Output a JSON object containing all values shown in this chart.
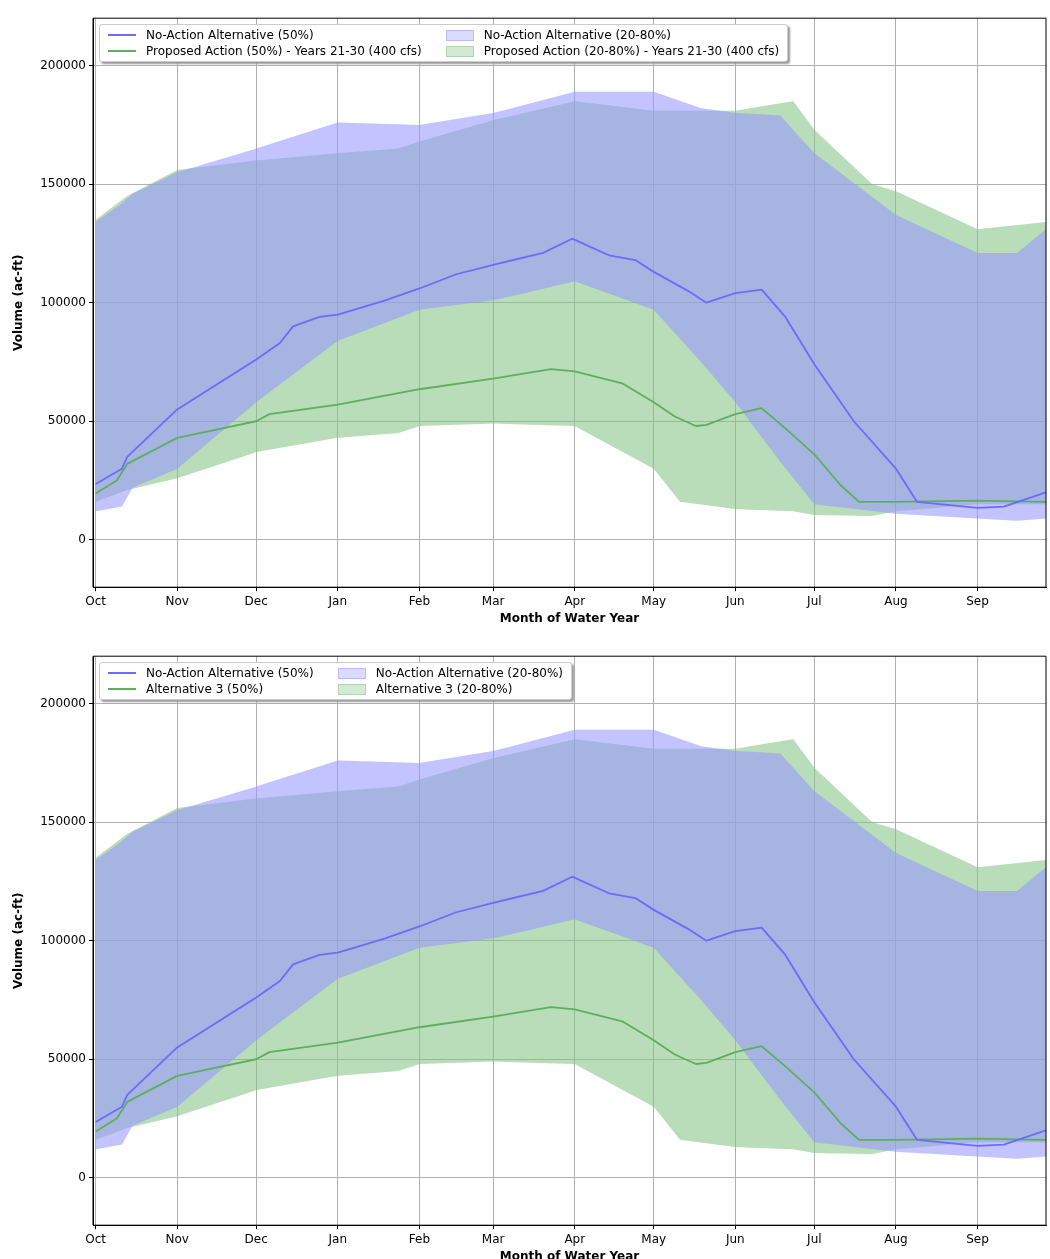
{
  "chart_data": [
    {
      "type": "line",
      "xlabel": "Month of Water Year",
      "ylabel": "Volume (ac-ft)",
      "legend": "top left",
      "grid": true,
      "marker": "none",
      "line_style": "solid",
      "xlim": [
        "2000-09-30",
        "2001-09-27"
      ],
      "xticks": [
        {
          "value": "2000-10-01",
          "label": "Oct"
        },
        {
          "value": "2000-11-01",
          "label": "Nov"
        },
        {
          "value": "2000-12-01",
          "label": "Dec"
        },
        {
          "value": "2001-01-01",
          "label": "Jan"
        },
        {
          "value": "2001-02-01",
          "label": "Feb"
        },
        {
          "value": "2001-03-01",
          "label": "Mar"
        },
        {
          "value": "2001-04-01",
          "label": "Apr"
        },
        {
          "value": "2001-05-01",
          "label": "May"
        },
        {
          "value": "2001-06-01",
          "label": "Jun"
        },
        {
          "value": "2001-07-01",
          "label": "Jul"
        },
        {
          "value": "2001-08-01",
          "label": "Aug"
        },
        {
          "value": "2001-09-01",
          "label": "Sep"
        }
      ],
      "ylim": [
        -20000,
        220000
      ],
      "yticks": [
        0,
        50000,
        100000,
        150000,
        200000
      ],
      "series": [
        {
          "name": "No-Action Alternative (50%)",
          "type": "line",
          "color": "#6b6bff",
          "x": [
            "2000-10-01",
            "2000-10-11",
            "2000-10-13",
            "2000-11-01",
            "2000-12-01",
            "2000-12-10",
            "2000-12-15",
            "2000-12-25",
            "2001-01-01",
            "2001-01-19",
            "2001-02-01",
            "2001-02-15",
            "2001-03-01",
            "2001-03-20",
            "2001-03-31",
            "2001-04-14",
            "2001-04-24",
            "2001-05-01",
            "2001-05-14",
            "2001-05-21",
            "2001-06-01",
            "2001-06-11",
            "2001-06-20",
            "2001-07-01",
            "2001-07-16",
            "2001-08-01",
            "2001-08-09",
            "2001-09-01",
            "2001-09-11",
            "2001-09-27"
          ],
          "values": [
            23500,
            30000,
            35000,
            55000,
            76000,
            83000,
            90000,
            94000,
            95000,
            101000,
            106000,
            112000,
            116000,
            121000,
            127000,
            120000,
            118000,
            113000,
            105000,
            100000,
            104000,
            105500,
            94000,
            74000,
            50000,
            30000,
            16000,
            13500,
            14000,
            20000
          ]
        },
        {
          "name": "Proposed Action (50%) - Years 21-30 (400 cfs)",
          "type": "line",
          "color": "#5fae5f",
          "x": [
            "2000-10-01",
            "2000-10-09",
            "2000-10-13",
            "2000-11-01",
            "2000-12-01",
            "2000-12-06",
            "2001-01-01",
            "2001-02-01",
            "2001-03-01",
            "2001-03-23",
            "2001-04-01",
            "2001-04-19",
            "2001-05-01",
            "2001-05-09",
            "2001-05-17",
            "2001-05-21",
            "2001-06-01",
            "2001-06-11",
            "2001-06-20",
            "2001-07-01",
            "2001-07-11",
            "2001-07-18",
            "2001-08-01",
            "2001-09-01",
            "2001-09-27"
          ],
          "values": [
            19500,
            25000,
            32000,
            43000,
            50000,
            53000,
            57000,
            63500,
            68000,
            72000,
            71000,
            66000,
            58000,
            52000,
            48000,
            48500,
            53000,
            55500,
            47000,
            36000,
            23000,
            16000,
            16000,
            16500,
            16000
          ]
        },
        {
          "name": "No-Action Alternative (20-80%)",
          "type": "area",
          "color": "#9999ff",
          "x": [
            "2000-10-01",
            "2000-10-11",
            "2000-10-15",
            "2000-11-01",
            "2000-12-01",
            "2001-01-01",
            "2001-02-01",
            "2001-03-01",
            "2001-04-01",
            "2001-05-01",
            "2001-05-19",
            "2001-06-01",
            "2001-06-18",
            "2001-07-01",
            "2001-08-01",
            "2001-09-01",
            "2001-09-16",
            "2001-09-27"
          ],
          "lower": [
            12000,
            14000,
            22000,
            30000,
            58000,
            84000,
            97000,
            101000,
            109000,
            97000,
            75000,
            58000,
            33000,
            15000,
            11000,
            9000,
            8000,
            9000
          ],
          "upper": [
            134000,
            142000,
            146000,
            155000,
            165000,
            176000,
            175000,
            180000,
            189000,
            189000,
            182000,
            180000,
            179000,
            163000,
            137000,
            121000,
            121000,
            131000
          ],
          "values": [
            null,
            null,
            null,
            null,
            null,
            null,
            null,
            null,
            null,
            null,
            null,
            null,
            null,
            null,
            null,
            null,
            null,
            null
          ]
        },
        {
          "name": "Proposed Action (20-80%) - Years 21-30 (400 cfs)",
          "type": "area",
          "color": "#88c488",
          "x": [
            "2000-10-01",
            "2000-10-13",
            "2000-11-01",
            "2000-12-01",
            "2001-01-01",
            "2001-01-24",
            "2001-02-01",
            "2001-03-01",
            "2001-04-01",
            "2001-05-01",
            "2001-05-11",
            "2001-06-01",
            "2001-06-23",
            "2001-07-01",
            "2001-07-23",
            "2001-08-01",
            "2001-09-01",
            "2001-09-27"
          ],
          "lower": [
            16000,
            21000,
            26000,
            37000,
            43000,
            45000,
            48000,
            49000,
            48000,
            30000,
            16000,
            13000,
            12000,
            10500,
            10000,
            12000,
            15000,
            15000
          ],
          "upper": [
            135000,
            145000,
            156000,
            160000,
            163000,
            165000,
            168000,
            177000,
            185000,
            181000,
            181000,
            181000,
            185000,
            173000,
            150000,
            147000,
            131000,
            134000
          ],
          "values": [
            null,
            null,
            null,
            null,
            null,
            null,
            null,
            null,
            null,
            null,
            null,
            null,
            null,
            null,
            null,
            null,
            null,
            null
          ]
        }
      ]
    },
    {
      "type": "line",
      "xlabel": "Month of Water Year",
      "ylabel": "Volume (ac-ft)",
      "legend": "top left",
      "grid": true,
      "marker": "none",
      "line_style": "solid",
      "xlim": [
        "2000-09-30",
        "2001-09-27"
      ],
      "xticks": [
        {
          "value": "2000-10-01",
          "label": "Oct"
        },
        {
          "value": "2000-11-01",
          "label": "Nov"
        },
        {
          "value": "2000-12-01",
          "label": "Dec"
        },
        {
          "value": "2001-01-01",
          "label": "Jan"
        },
        {
          "value": "2001-02-01",
          "label": "Feb"
        },
        {
          "value": "2001-03-01",
          "label": "Mar"
        },
        {
          "value": "2001-04-01",
          "label": "Apr"
        },
        {
          "value": "2001-05-01",
          "label": "May"
        },
        {
          "value": "2001-06-01",
          "label": "Jun"
        },
        {
          "value": "2001-07-01",
          "label": "Jul"
        },
        {
          "value": "2001-08-01",
          "label": "Aug"
        },
        {
          "value": "2001-09-01",
          "label": "Sep"
        }
      ],
      "ylim": [
        -20000,
        220000
      ],
      "yticks": [
        0,
        50000,
        100000,
        150000,
        200000
      ],
      "series": [
        {
          "name": "No-Action Alternative (50%)",
          "type": "line",
          "color": "#6b6bff",
          "x": [
            "2000-10-01",
            "2000-10-11",
            "2000-10-13",
            "2000-11-01",
            "2000-12-01",
            "2000-12-10",
            "2000-12-15",
            "2000-12-25",
            "2001-01-01",
            "2001-01-19",
            "2001-02-01",
            "2001-02-15",
            "2001-03-01",
            "2001-03-20",
            "2001-03-31",
            "2001-04-14",
            "2001-04-24",
            "2001-05-01",
            "2001-05-14",
            "2001-05-21",
            "2001-06-01",
            "2001-06-11",
            "2001-06-20",
            "2001-07-01",
            "2001-07-16",
            "2001-08-01",
            "2001-08-09",
            "2001-09-01",
            "2001-09-11",
            "2001-09-27"
          ],
          "values": [
            23500,
            30000,
            35000,
            55000,
            76000,
            83000,
            90000,
            94000,
            95000,
            101000,
            106000,
            112000,
            116000,
            121000,
            127000,
            120000,
            118000,
            113000,
            105000,
            100000,
            104000,
            105500,
            94000,
            74000,
            50000,
            30000,
            16000,
            13500,
            14000,
            20000
          ]
        },
        {
          "name": "Alternative 3 (50%)",
          "type": "line",
          "color": "#5fae5f",
          "x": [
            "2000-10-01",
            "2000-10-09",
            "2000-10-13",
            "2000-11-01",
            "2000-12-01",
            "2000-12-06",
            "2001-01-01",
            "2001-02-01",
            "2001-03-01",
            "2001-03-23",
            "2001-04-01",
            "2001-04-19",
            "2001-05-01",
            "2001-05-09",
            "2001-05-17",
            "2001-05-21",
            "2001-06-01",
            "2001-06-11",
            "2001-06-20",
            "2001-07-01",
            "2001-07-11",
            "2001-07-18",
            "2001-08-01",
            "2001-09-01",
            "2001-09-27"
          ],
          "values": [
            19500,
            25000,
            32000,
            43000,
            50000,
            53000,
            57000,
            63500,
            68000,
            72000,
            71000,
            66000,
            58000,
            52000,
            48000,
            48500,
            53000,
            55500,
            47000,
            36000,
            23000,
            16000,
            16000,
            16500,
            16000
          ]
        },
        {
          "name": "No-Action Alternative (20-80%)",
          "type": "area",
          "color": "#9999ff",
          "x": [
            "2000-10-01",
            "2000-10-11",
            "2000-10-15",
            "2000-11-01",
            "2000-12-01",
            "2001-01-01",
            "2001-02-01",
            "2001-03-01",
            "2001-04-01",
            "2001-05-01",
            "2001-05-19",
            "2001-06-01",
            "2001-06-18",
            "2001-07-01",
            "2001-08-01",
            "2001-09-01",
            "2001-09-16",
            "2001-09-27"
          ],
          "lower": [
            12000,
            14000,
            22000,
            30000,
            58000,
            84000,
            97000,
            101000,
            109000,
            97000,
            75000,
            58000,
            33000,
            15000,
            11000,
            9000,
            8000,
            9000
          ],
          "upper": [
            134000,
            142000,
            146000,
            155000,
            165000,
            176000,
            175000,
            180000,
            189000,
            189000,
            182000,
            180000,
            179000,
            163000,
            137000,
            121000,
            121000,
            131000
          ],
          "values": [
            null,
            null,
            null,
            null,
            null,
            null,
            null,
            null,
            null,
            null,
            null,
            null,
            null,
            null,
            null,
            null,
            null,
            null
          ]
        },
        {
          "name": "Alternative 3 (20-80%)",
          "type": "area",
          "color": "#88c488",
          "x": [
            "2000-10-01",
            "2000-10-13",
            "2000-11-01",
            "2000-12-01",
            "2001-01-01",
            "2001-01-24",
            "2001-02-01",
            "2001-03-01",
            "2001-04-01",
            "2001-05-01",
            "2001-05-11",
            "2001-06-01",
            "2001-06-23",
            "2001-07-01",
            "2001-07-23",
            "2001-08-01",
            "2001-09-01",
            "2001-09-27"
          ],
          "lower": [
            16000,
            21000,
            26000,
            37000,
            43000,
            45000,
            48000,
            49000,
            48000,
            30000,
            16000,
            13000,
            12000,
            10500,
            10000,
            12000,
            15000,
            15000
          ],
          "upper": [
            135000,
            145000,
            156000,
            160000,
            163000,
            165000,
            168000,
            177000,
            185000,
            181000,
            181000,
            181000,
            185000,
            173000,
            150000,
            147000,
            131000,
            134000
          ],
          "values": [
            null,
            null,
            null,
            null,
            null,
            null,
            null,
            null,
            null,
            null,
            null,
            null,
            null,
            null,
            null,
            null,
            null,
            null
          ]
        }
      ]
    }
  ]
}
